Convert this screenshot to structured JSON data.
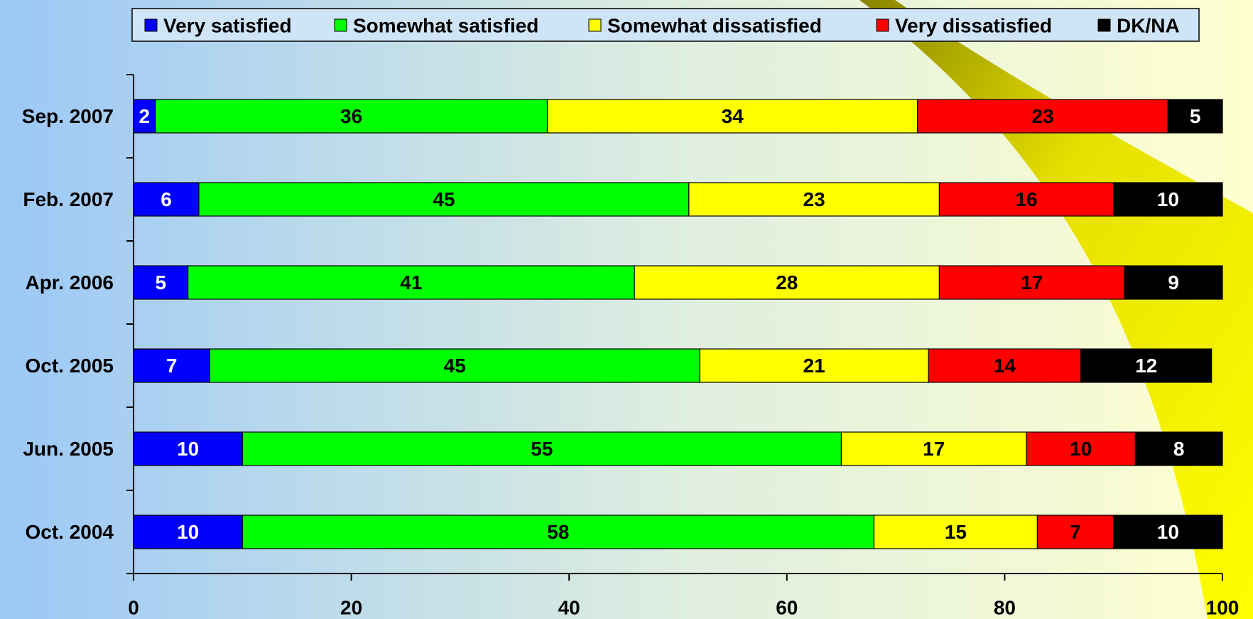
{
  "chart_data": {
    "type": "stacked-bar-horizontal",
    "categories": [
      "Sep. 2007",
      "Feb. 2007",
      "Apr. 2006",
      "Oct. 2005",
      "Jun. 2005",
      "Oct. 2004"
    ],
    "series": [
      {
        "name": "Very satisfied",
        "color": "#0000ff",
        "values": [
          2,
          6,
          5,
          7,
          10,
          10
        ]
      },
      {
        "name": "Somewhat satisfied",
        "color": "#00ff00",
        "values": [
          36,
          45,
          41,
          45,
          55,
          58
        ]
      },
      {
        "name": "Somewhat dissatisfied",
        "color": "#ffff00",
        "values": [
          34,
          23,
          28,
          21,
          17,
          15
        ]
      },
      {
        "name": "Very dissatisfied",
        "color": "#ff0000",
        "values": [
          23,
          16,
          17,
          14,
          10,
          7
        ]
      },
      {
        "name": "DK/NA",
        "color": "#000000",
        "values": [
          5,
          10,
          9,
          12,
          8,
          10
        ]
      }
    ],
    "xlim": [
      0,
      100
    ],
    "xticks": [
      0,
      20,
      40,
      60,
      80,
      100
    ],
    "legend": "top"
  }
}
